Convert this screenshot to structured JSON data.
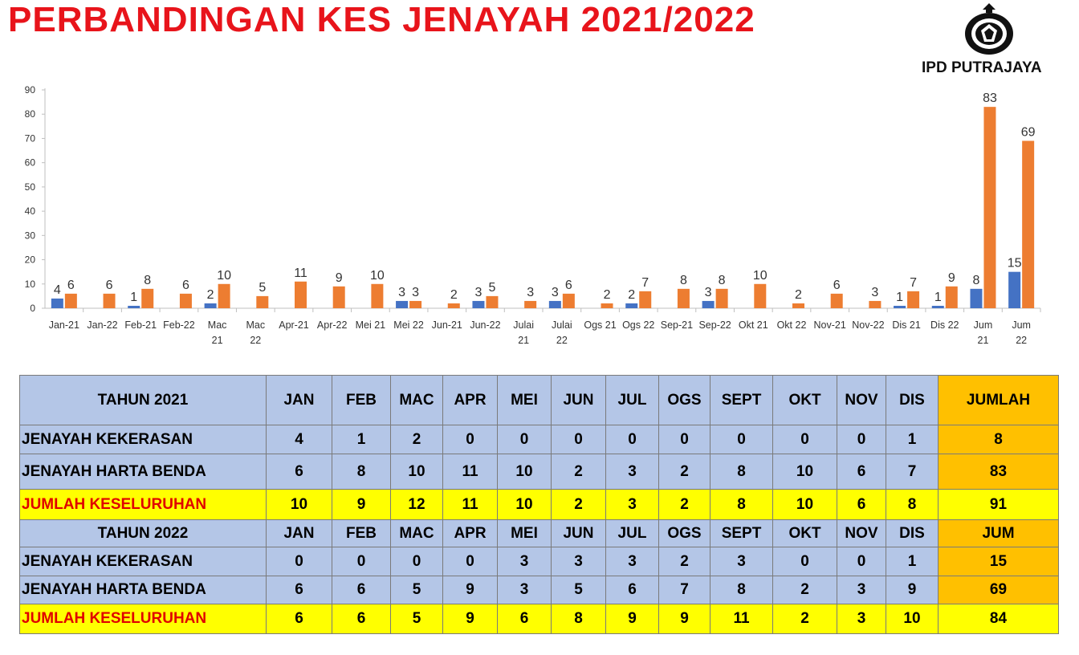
{
  "title": "PERBANDINGAN KES JENAYAH 2021/2022",
  "org": "IPD PUTRAJAYA",
  "colors": {
    "violence": "#4472c4",
    "property": "#ed7d31",
    "title": "#e8141b",
    "blue_row": "#b4c6e7",
    "yellow_row": "#ffff00",
    "total_col": "#ffc000"
  },
  "chart_data": {
    "type": "bar",
    "categories": [
      "Jan-21",
      "Jan-22",
      "Feb-21",
      "Feb-22",
      "Mac 21",
      "Mac 22",
      "Apr-21",
      "Apr-22",
      "Mei 21",
      "Mei 22",
      "Jun-21",
      "Jun-22",
      "Julai 21",
      "Julai 22",
      "Ogs 21",
      "Ogs 22",
      "Sep-21",
      "Sep-22",
      "Okt 21",
      "Okt 22",
      "Nov-21",
      "Nov-22",
      "Dis 21",
      "Dis 22",
      "Jum 21",
      "Jum 22"
    ],
    "series": [
      {
        "values": [
          4,
          0,
          1,
          0,
          2,
          0,
          0,
          0,
          0,
          3,
          0,
          3,
          0,
          3,
          0,
          2,
          0,
          3,
          0,
          0,
          0,
          0,
          1,
          1,
          8,
          15
        ]
      },
      {
        "values": [
          6,
          6,
          8,
          6,
          10,
          5,
          11,
          9,
          10,
          3,
          2,
          5,
          3,
          6,
          2,
          7,
          8,
          8,
          10,
          2,
          6,
          3,
          7,
          9,
          83,
          69
        ]
      }
    ],
    "ylim": [
      0,
      90
    ],
    "yticks": [
      0,
      10,
      20,
      30,
      40,
      50,
      60,
      70,
      80,
      90
    ],
    "grid": false,
    "legend": "none"
  },
  "table": {
    "months": [
      "JAN",
      "FEB",
      "MAC",
      "APR",
      "MEI",
      "JUN",
      "JUL",
      "OGS",
      "SEPT",
      "OKT",
      "NOV",
      "DIS"
    ],
    "y2021": {
      "header": "TAHUN 2021",
      "total_header": "JUMLAH",
      "rows": [
        {
          "label": "JENAYAH KEKERASAN",
          "values": [
            "4",
            "1",
            "2",
            "0",
            "0",
            "0",
            "0",
            "0",
            "0",
            "0",
            "0",
            "1"
          ],
          "total": "8"
        },
        {
          "label": "JENAYAH HARTA BENDA",
          "values": [
            "6",
            "8",
            "10",
            "11",
            "10",
            "2",
            "3",
            "2",
            "8",
            "10",
            "6",
            "7"
          ],
          "total": "83"
        },
        {
          "label": "JUMLAH KESELURUHAN",
          "values": [
            "10",
            "9",
            "12",
            "11",
            "10",
            "2",
            "3",
            "2",
            "8",
            "10",
            "6",
            "8"
          ],
          "total": "91"
        }
      ]
    },
    "y2022": {
      "header": "TAHUN 2022",
      "total_header": "JUM",
      "rows": [
        {
          "label": "JENAYAH KEKERASAN",
          "values": [
            "0",
            "0",
            "0",
            "0",
            "3",
            "3",
            "3",
            "2",
            "3",
            "0",
            "0",
            "1"
          ],
          "total": "15"
        },
        {
          "label": "JENAYAH HARTA BENDA",
          "values": [
            "6",
            "6",
            "5",
            "9",
            "3",
            "5",
            "6",
            "7",
            "8",
            "2",
            "3",
            "9"
          ],
          "total": "69"
        },
        {
          "label": "JUMLAH KESELURUHAN",
          "values": [
            "6",
            "6",
            "5",
            "9",
            "6",
            "8",
            "9",
            "9",
            "11",
            "2",
            "3",
            "10"
          ],
          "total": "84"
        }
      ]
    }
  }
}
